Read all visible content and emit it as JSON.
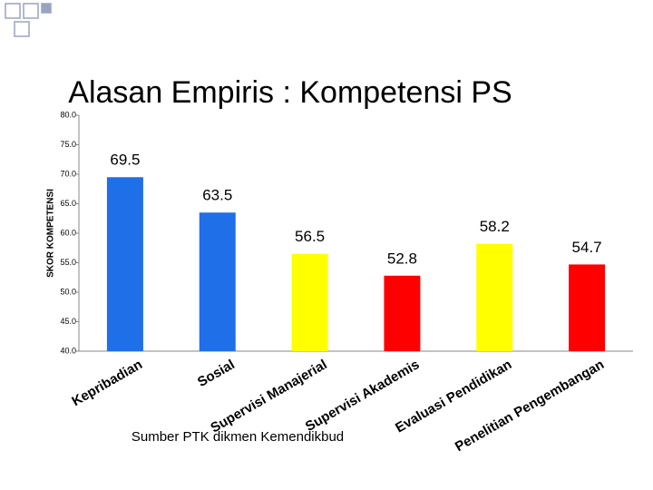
{
  "chart_data": {
    "type": "bar",
    "title": "Alasan Empiris : Kompetensi PS",
    "y_label": "SKOR KOMPETENSI",
    "categories": [
      "Kepribadian",
      "Sosial",
      "Supervisi Manajerial",
      "Supervisi Akademis",
      "Evaluasi Pendidikan",
      "Penelitian Pengembangan"
    ],
    "values": [
      69.5,
      63.5,
      56.5,
      52.8,
      58.2,
      54.7
    ],
    "colors": [
      "#1f6fe8",
      "#1f6fe8",
      "#ffff00",
      "#ff0000",
      "#ffff00",
      "#ff0000"
    ],
    "ylim": [
      40,
      80
    ],
    "yticks": [
      {
        "value": 40,
        "label": "40.0"
      },
      {
        "value": 45,
        "label": "45.0"
      },
      {
        "value": 50,
        "label": "50.0"
      },
      {
        "value": 55,
        "label": "55.0"
      },
      {
        "value": 60,
        "label": "60.0"
      },
      {
        "value": 65,
        "label": "65.0"
      },
      {
        "value": 70,
        "label": "70.0"
      },
      {
        "value": 75,
        "label": "75.0"
      },
      {
        "value": 80,
        "label": "80.0"
      }
    ],
    "footnote": "Sumber PTK dikmen Kemendikbud"
  }
}
